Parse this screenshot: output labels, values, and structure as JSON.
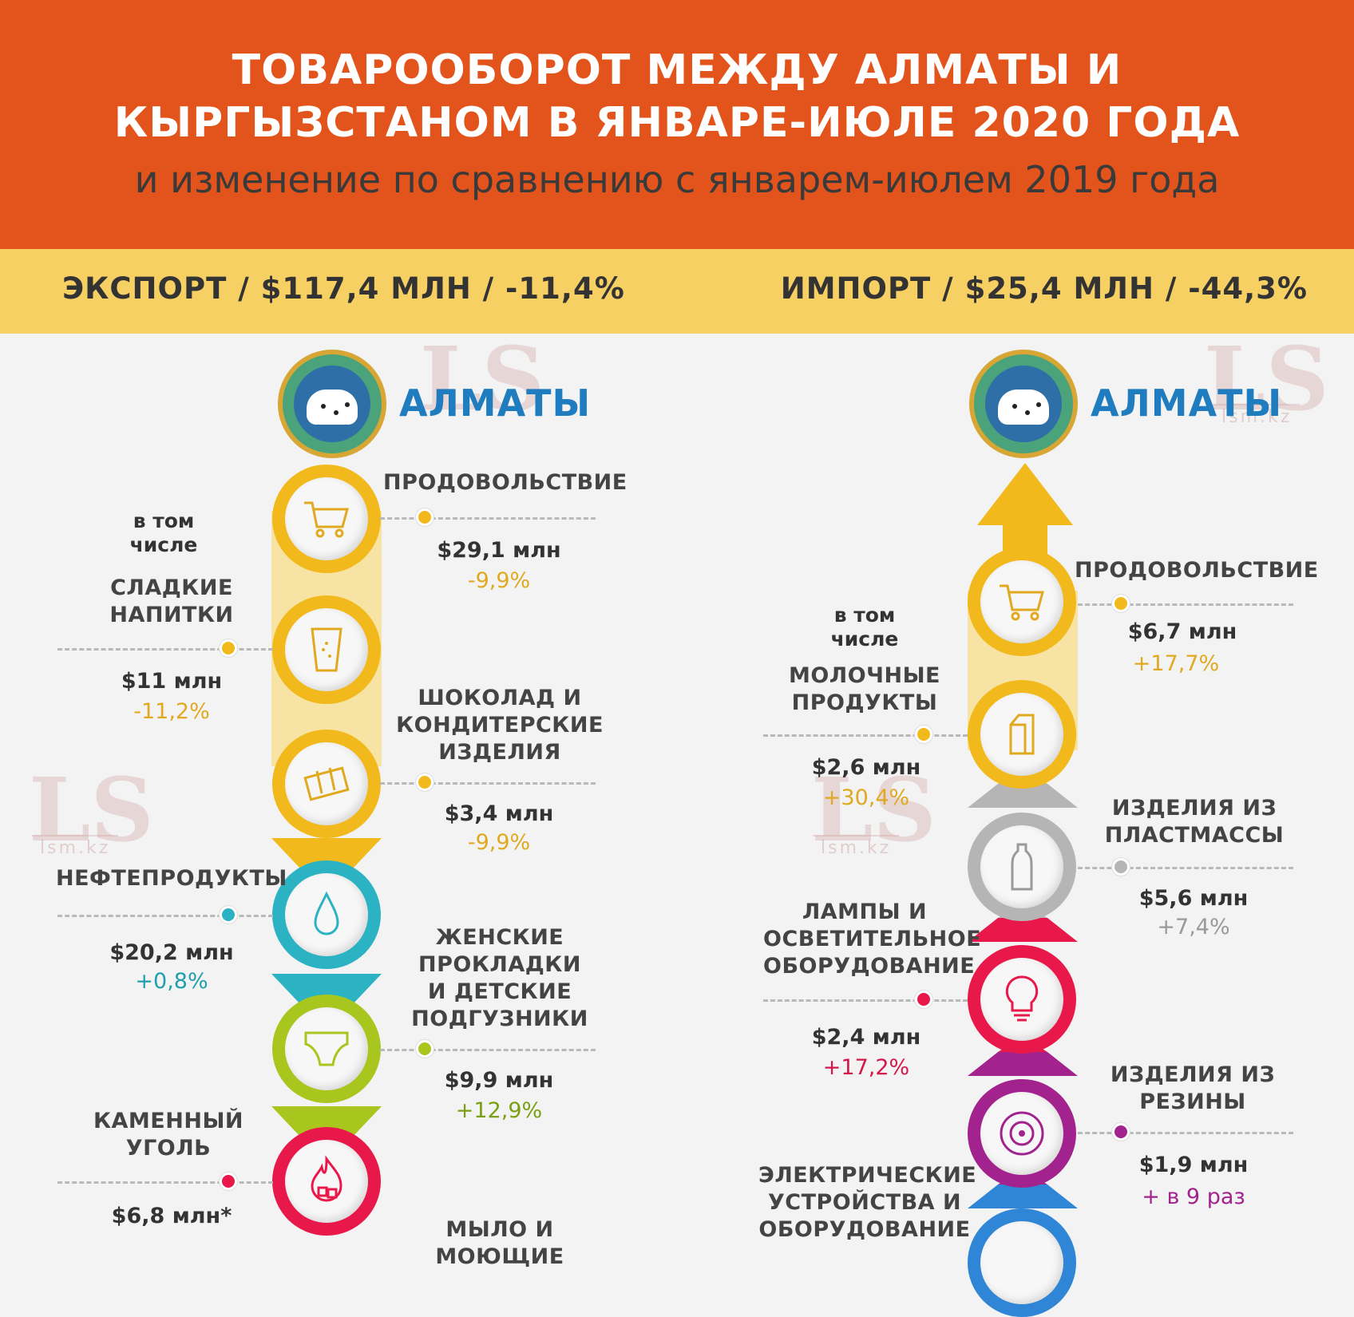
{
  "header": {
    "title_line1": "ТОВАРООБОРОТ МЕЖДУ АЛМАТЫ И",
    "title_line2": "КЫРГЫЗСТАНОМ В ЯНВАРЕ-ИЮЛЕ 2020 ГОДА",
    "subtitle": "и изменение по сравнению с январем-июлем 2019 года"
  },
  "band": {
    "export": "ЭКСПОРТ / $117,4 МЛН / -11,4%",
    "import": "ИМПОРТ / $25,4 МЛН / -44,3%"
  },
  "city": "АЛМАТЫ",
  "watermark": {
    "logo": "LS",
    "site": "lsm.kz"
  },
  "colors": {
    "yellow": "#f2b91c",
    "teal": "#2bb3c4",
    "green": "#a8c61e",
    "red": "#e8194a",
    "gray": "#b5b5b5",
    "magenta": "#a3238e",
    "blue": "#2f86d6",
    "neg_yellow": "#e0a91f",
    "teal_text": "#1f9fae",
    "green_text": "#7aa012",
    "red_text": "#d5164a",
    "gray_text": "#999999",
    "magenta_text": "#a3238e"
  },
  "export": {
    "items": [
      {
        "icon": "shopping-cart-icon",
        "category": "ПРОДОВОЛЬСТВИЕ",
        "value": "$29,1 млн",
        "change": "-9,9%"
      },
      {
        "note": "в том числе",
        "icon": "glass-icon",
        "category": "СЛАДКИЕ НАПИТКИ",
        "value": "$11 млн",
        "change": "-11,2%"
      },
      {
        "icon": "chocolate-icon",
        "category": "ШОКОЛАД И КОНДИТЕРСКИЕ ИЗДЕЛИЯ",
        "value": "$3,4 млн",
        "change": "-9,9%"
      },
      {
        "icon": "drop-icon",
        "category": "НЕФТЕПРОДУКТЫ",
        "value": "$20,2 млн",
        "change": "+0,8%"
      },
      {
        "icon": "diaper-icon",
        "category": "ЖЕНСКИЕ ПРОКЛАДКИ И ДЕТСКИЕ ПОДГУЗНИКИ",
        "value": "$9,9 млн",
        "change": "+12,9%"
      },
      {
        "icon": "coal-fire-icon",
        "category": "КАМЕННЫЙ УГОЛЬ",
        "value": "$6,8 млн*",
        "change": ""
      },
      {
        "category": "МЫЛО И МОЮЩИЕ"
      }
    ]
  },
  "import": {
    "items": [
      {
        "icon": "shopping-cart-icon",
        "category": "ПРОДОВОЛЬСТВИЕ",
        "value": "$6,7 млн",
        "change": "+17,7%"
      },
      {
        "note": "в том числе",
        "icon": "milk-carton-icon",
        "category": "МОЛОЧНЫЕ ПРОДУКТЫ",
        "value": "$2,6 млн",
        "change": "+30,4%"
      },
      {
        "icon": "bottle-icon",
        "category": "ИЗДЕЛИЯ ИЗ ПЛАСТМАССЫ",
        "value": "$5,6 млн",
        "change": "+7,4%"
      },
      {
        "icon": "lightbulb-icon",
        "category": "ЛАМПЫ И ОСВЕТИТЕЛЬНОЕ ОБОРУДОВАНИЕ",
        "value": "$2,4 млн",
        "change": "+17,2%"
      },
      {
        "icon": "tire-icon",
        "category": "ИЗДЕЛИЯ ИЗ РЕЗИНЫ",
        "value": "$1,9 млн",
        "change": "+ в 9 раз"
      },
      {
        "category": "ЭЛЕКТРИЧЕСКИЕ УСТРОЙСТВА И ОБОРУДОВАНИЕ"
      }
    ]
  }
}
